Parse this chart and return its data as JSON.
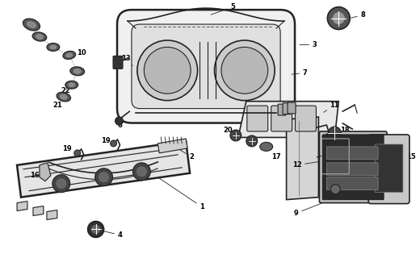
{
  "bg_color": "#ffffff",
  "line_color": "#222222",
  "label_color": "#000000",
  "figsize": [
    5.2,
    3.2
  ],
  "dpi": 100
}
